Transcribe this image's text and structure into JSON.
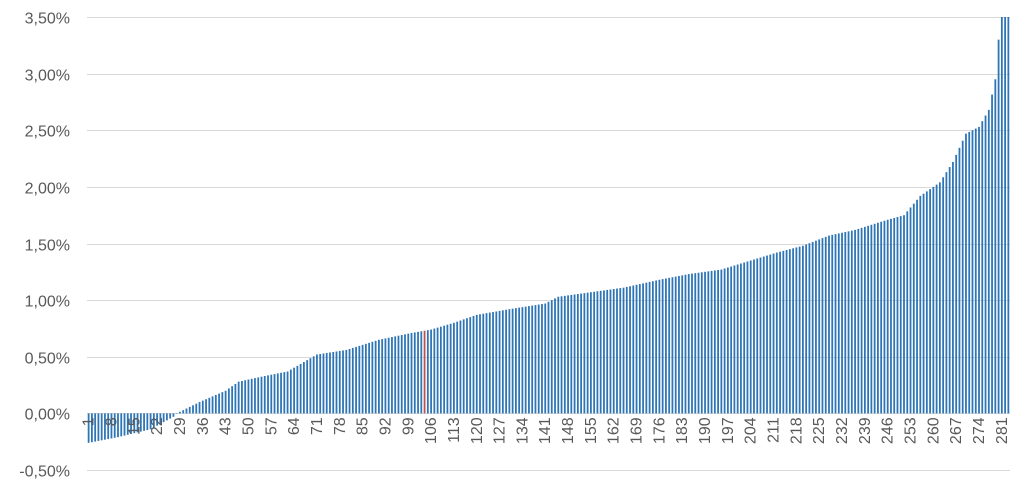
{
  "chart_data": {
    "type": "bar",
    "title": "",
    "xlabel": "",
    "ylabel": "",
    "x_range": [
      1,
      283
    ],
    "ylim": [
      -0.5,
      3.5
    ],
    "y_ticks": [
      "-0,50%",
      "0,00%",
      "0,50%",
      "1,00%",
      "1,50%",
      "2,00%",
      "2,50%",
      "3,00%",
      "3,50%"
    ],
    "x_ticks": [
      "1",
      "8",
      "15",
      "22",
      "29",
      "36",
      "43",
      "50",
      "57",
      "64",
      "71",
      "78",
      "85",
      "92",
      "99",
      "106",
      "113",
      "120",
      "127",
      "134",
      "141",
      "148",
      "155",
      "162",
      "169",
      "176",
      "183",
      "190",
      "197",
      "204",
      "211",
      "218",
      "225",
      "232",
      "239",
      "246",
      "253",
      "260",
      "267",
      "274",
      "281"
    ],
    "bar_color": "#2e75b6",
    "highlight_color": "#c0504d",
    "highlight_index": 104,
    "grid": true,
    "values_anchor_points": [
      [
        1,
        -0.26
      ],
      [
        10,
        -0.21
      ],
      [
        20,
        -0.14
      ],
      [
        27,
        -0.03
      ],
      [
        28,
        0.0
      ],
      [
        35,
        0.1
      ],
      [
        43,
        0.2
      ],
      [
        47,
        0.28
      ],
      [
        55,
        0.33
      ],
      [
        62,
        0.37
      ],
      [
        71,
        0.52
      ],
      [
        80,
        0.56
      ],
      [
        90,
        0.65
      ],
      [
        100,
        0.71
      ],
      [
        106,
        0.74
      ],
      [
        113,
        0.8
      ],
      [
        120,
        0.87
      ],
      [
        130,
        0.92
      ],
      [
        141,
        0.97
      ],
      [
        145,
        1.03
      ],
      [
        155,
        1.07
      ],
      [
        165,
        1.11
      ],
      [
        176,
        1.18
      ],
      [
        185,
        1.23
      ],
      [
        195,
        1.27
      ],
      [
        204,
        1.35
      ],
      [
        212,
        1.42
      ],
      [
        220,
        1.48
      ],
      [
        228,
        1.57
      ],
      [
        236,
        1.62
      ],
      [
        246,
        1.71
      ],
      [
        251,
        1.75
      ],
      [
        256,
        1.92
      ],
      [
        262,
        2.04
      ],
      [
        266,
        2.22
      ],
      [
        270,
        2.47
      ],
      [
        274,
        2.53
      ],
      [
        277,
        2.68
      ],
      [
        279,
        2.95
      ],
      [
        280,
        3.3
      ],
      [
        281,
        3.5
      ]
    ]
  }
}
